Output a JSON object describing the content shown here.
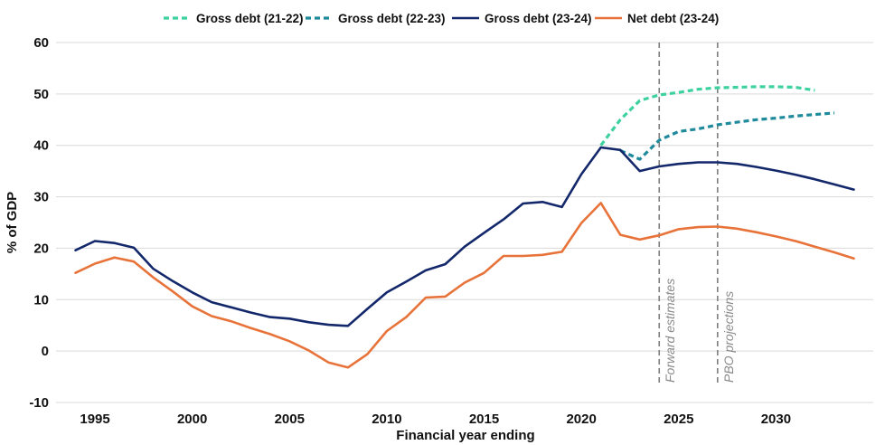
{
  "chart_data": {
    "type": "line",
    "title": "",
    "xlabel": "Financial year ending",
    "ylabel": "% of GDP",
    "xlim": [
      1993,
      2035
    ],
    "ylim": [
      -10,
      60
    ],
    "yticks": [
      -10,
      0,
      10,
      20,
      30,
      40,
      50,
      60
    ],
    "xticks": [
      1995,
      2000,
      2005,
      2010,
      2015,
      2020,
      2025,
      2030
    ],
    "grid": true,
    "legend_position": "top",
    "series": [
      {
        "name": "Gross debt (21-22)",
        "color": "#3dd1a0",
        "dash": "dashed",
        "x": [
          2021,
          2022,
          2023,
          2024,
          2025,
          2026,
          2027,
          2028,
          2029,
          2030,
          2031,
          2032
        ],
        "y": [
          40.0,
          45.0,
          48.7,
          49.8,
          50.3,
          50.9,
          51.2,
          51.3,
          51.4,
          51.4,
          51.3,
          50.7
        ]
      },
      {
        "name": "Gross debt (22-23)",
        "color": "#1e8a9c",
        "dash": "dashed",
        "x": [
          2022,
          2023,
          2024,
          2025,
          2026,
          2027,
          2028,
          2029,
          2030,
          2031,
          2032,
          2033
        ],
        "y": [
          39.0,
          37.3,
          41.0,
          42.7,
          43.2,
          44.0,
          44.5,
          45.0,
          45.3,
          45.7,
          46.0,
          46.3
        ]
      },
      {
        "name": "Gross debt (23-24)",
        "color": "#13276b",
        "dash": "solid",
        "x": [
          1994,
          1995,
          1996,
          1997,
          1998,
          1999,
          2000,
          2001,
          2002,
          2003,
          2004,
          2005,
          2006,
          2007,
          2008,
          2009,
          2010,
          2011,
          2012,
          2013,
          2014,
          2015,
          2016,
          2017,
          2018,
          2019,
          2020,
          2021,
          2022,
          2023,
          2024,
          2025,
          2026,
          2027,
          2028,
          2029,
          2030,
          2031,
          2032,
          2033,
          2034
        ],
        "y": [
          19.6,
          21.4,
          21.0,
          20.1,
          16.0,
          13.6,
          11.4,
          9.5,
          8.5,
          7.5,
          6.6,
          6.3,
          5.6,
          5.1,
          4.9,
          8.2,
          11.4,
          13.5,
          15.7,
          16.9,
          20.3,
          23.0,
          25.6,
          28.7,
          29.0,
          28.0,
          34.4,
          39.6,
          39.1,
          35.0,
          35.9,
          36.4,
          36.7,
          36.7,
          36.4,
          35.8,
          35.1,
          34.3,
          33.4,
          32.4,
          31.4
        ]
      },
      {
        "name": "Net debt (23-24)",
        "color": "#e8733a",
        "dash": "solid",
        "x": [
          1994,
          1995,
          1996,
          1997,
          1998,
          1999,
          2000,
          2001,
          2002,
          2003,
          2004,
          2005,
          2006,
          2007,
          2008,
          2009,
          2010,
          2011,
          2012,
          2013,
          2014,
          2015,
          2016,
          2017,
          2018,
          2019,
          2020,
          2021,
          2022,
          2023,
          2024,
          2025,
          2026,
          2027,
          2028,
          2029,
          2030,
          2031,
          2032,
          2033,
          2034
        ],
        "y": [
          15.2,
          17.0,
          18.2,
          17.4,
          14.3,
          11.6,
          8.7,
          6.8,
          5.8,
          4.5,
          3.3,
          1.9,
          0.1,
          -2.2,
          -3.2,
          -0.6,
          3.9,
          6.6,
          10.4,
          10.6,
          13.3,
          15.2,
          18.5,
          18.5,
          18.7,
          19.3,
          24.9,
          28.8,
          22.6,
          21.7,
          22.5,
          23.7,
          24.1,
          24.2,
          23.8,
          23.1,
          22.3,
          21.4,
          20.3,
          19.2,
          18.0
        ]
      }
    ],
    "annotations": [
      {
        "text": "Forward estimates",
        "x": 2024,
        "style": "dashed-vertical-line"
      },
      {
        "text": "PBO projections",
        "x": 2027,
        "style": "dashed-vertical-line"
      }
    ]
  }
}
